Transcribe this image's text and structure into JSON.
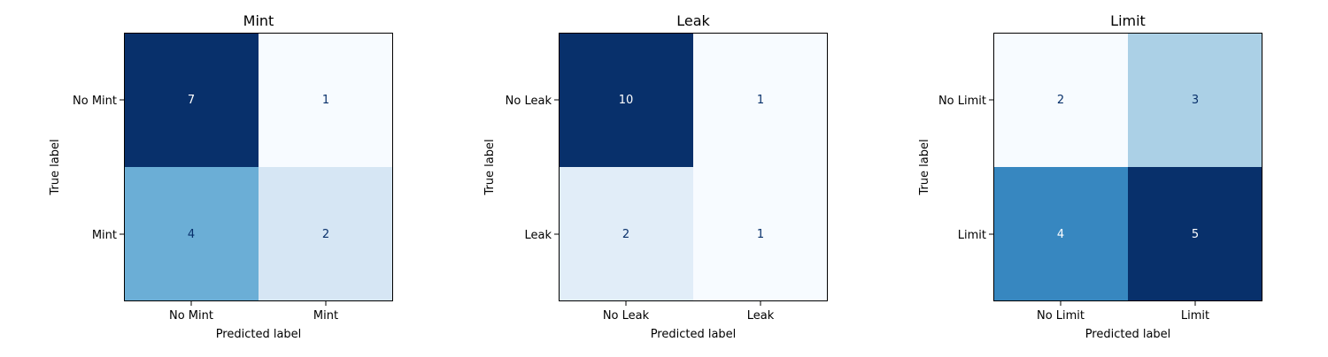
{
  "chart_data": [
    {
      "type": "heatmap",
      "title": "Mint",
      "xlabel": "Predicted label",
      "ylabel": "True label",
      "x_categories": [
        "No Mint",
        "Mint"
      ],
      "y_categories": [
        "No Mint",
        "Mint"
      ],
      "values": [
        [
          7,
          1
        ],
        [
          4,
          2
        ]
      ],
      "colormap": "Blues",
      "grid": false
    },
    {
      "type": "heatmap",
      "title": "Leak",
      "xlabel": "Predicted label",
      "ylabel": "True label",
      "x_categories": [
        "No Leak",
        "Leak"
      ],
      "y_categories": [
        "No Leak",
        "Leak"
      ],
      "values": [
        [
          10,
          1
        ],
        [
          2,
          1
        ]
      ],
      "colormap": "Blues",
      "grid": false
    },
    {
      "type": "heatmap",
      "title": "Limit",
      "xlabel": "Predicted label",
      "ylabel": "True label",
      "x_categories": [
        "No Limit",
        "Limit"
      ],
      "y_categories": [
        "No Limit",
        "Limit"
      ],
      "values": [
        [
          2,
          3
        ],
        [
          4,
          5
        ]
      ],
      "colormap": "Blues",
      "grid": false
    }
  ]
}
